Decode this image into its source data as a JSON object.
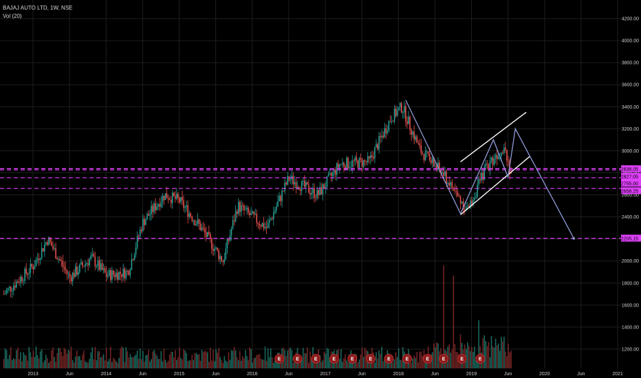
{
  "chart_data": {
    "type": "candlestick",
    "title": "BAJAJ AUTO LTD, 1W, NSE",
    "indicator": "Vol (20)",
    "y_axis": {
      "range": [
        1120,
        4300
      ],
      "ticks": [
        "4200.00",
        "4000.00",
        "3800.00",
        "3600.00",
        "3400.00",
        "3200.00",
        "3000.00",
        "2800.00",
        "2600.00",
        "2400.00",
        "2200.00",
        "2000.00",
        "1800.00",
        "1600.00",
        "1400.00",
        "1200.00"
      ]
    },
    "x_axis": {
      "ticks": [
        "2013",
        "Jun",
        "2014",
        "Jun",
        "2015",
        "Jun",
        "2016",
        "Jun",
        "2017",
        "Jun",
        "2018",
        "Jun",
        "2019",
        "Jun",
        "2020",
        "Jun",
        "2021"
      ]
    },
    "price_path_approx": [
      {
        "x": "2012.6",
        "close": 1700
      },
      {
        "x": "2013.0",
        "close": 1950
      },
      {
        "x": "2013.2",
        "close": 2200
      },
      {
        "x": "2013.5",
        "close": 1850
      },
      {
        "x": "2013.8",
        "close": 2030
      },
      {
        "x": "2014.0",
        "close": 1870
      },
      {
        "x": "2014.3",
        "close": 1900
      },
      {
        "x": "2014.5",
        "close": 2350
      },
      {
        "x": "2014.8",
        "close": 2600
      },
      {
        "x": "2015.0",
        "close": 2550
      },
      {
        "x": "2015.3",
        "close": 2300
      },
      {
        "x": "2015.6",
        "close": 2000
      },
      {
        "x": "2015.8",
        "close": 2500
      },
      {
        "x": "2016.0",
        "close": 2400
      },
      {
        "x": "2016.2",
        "close": 2300
      },
      {
        "x": "2016.5",
        "close": 2750
      },
      {
        "x": "2016.9",
        "close": 2600
      },
      {
        "x": "2017.2",
        "close": 2880
      },
      {
        "x": "2017.6",
        "close": 2900
      },
      {
        "x": "2017.9",
        "close": 3300
      },
      {
        "x": "2018.05",
        "close": 3400
      },
      {
        "x": "2018.3",
        "close": 3000
      },
      {
        "x": "2018.6",
        "close": 2800
      },
      {
        "x": "2018.8",
        "close": 2600
      },
      {
        "x": "2018.95",
        "close": 2460
      },
      {
        "x": "2019.2",
        "close": 2850
      },
      {
        "x": "2019.45",
        "close": 3050
      },
      {
        "x": "2019.55",
        "close": 2780
      }
    ],
    "horizontal_levels": [
      {
        "value": 2838.05,
        "label": "2838.05"
      },
      {
        "value": 2827.05,
        "label": "2827.05"
      },
      {
        "value": 2755.0,
        "label": "2755.00"
      },
      {
        "value": 2658.25,
        "label": "2658.25"
      },
      {
        "value": 2205.15,
        "label": "2205.15"
      }
    ],
    "channel": {
      "upper": [
        {
          "x": "2018.85",
          "y": 2900
        },
        {
          "x": "2019.75",
          "y": 3350
        }
      ],
      "lower": [
        {
          "x": "2018.85",
          "y": 2420
        },
        {
          "x": "2019.8",
          "y": 2950
        }
      ]
    },
    "projection_path": [
      {
        "x": "2018.1",
        "y": 3460
      },
      {
        "x": "2018.85",
        "y": 2430
      },
      {
        "x": "2019.3",
        "y": 3100
      },
      {
        "x": "2019.5",
        "y": 2760
      },
      {
        "x": "2019.6",
        "y": 3200
      },
      {
        "x": "2019.8",
        "y": 2950
      },
      {
        "x": "2020.4",
        "y": 2205
      }
    ],
    "earnings_markers": [
      "E",
      "E",
      "E",
      "E",
      "E",
      "E",
      "E",
      "E",
      "E",
      "E",
      "E",
      "E"
    ],
    "colors": {
      "background": "#000000",
      "up": "#26a69a",
      "down": "#ef5350",
      "level": "#e040fb",
      "channel": "#ffffff",
      "projection": "#8f9bd8",
      "volume_up": "#1f7f72",
      "volume_down": "#8b2b2b",
      "earnings": "#8b1a1a"
    }
  }
}
